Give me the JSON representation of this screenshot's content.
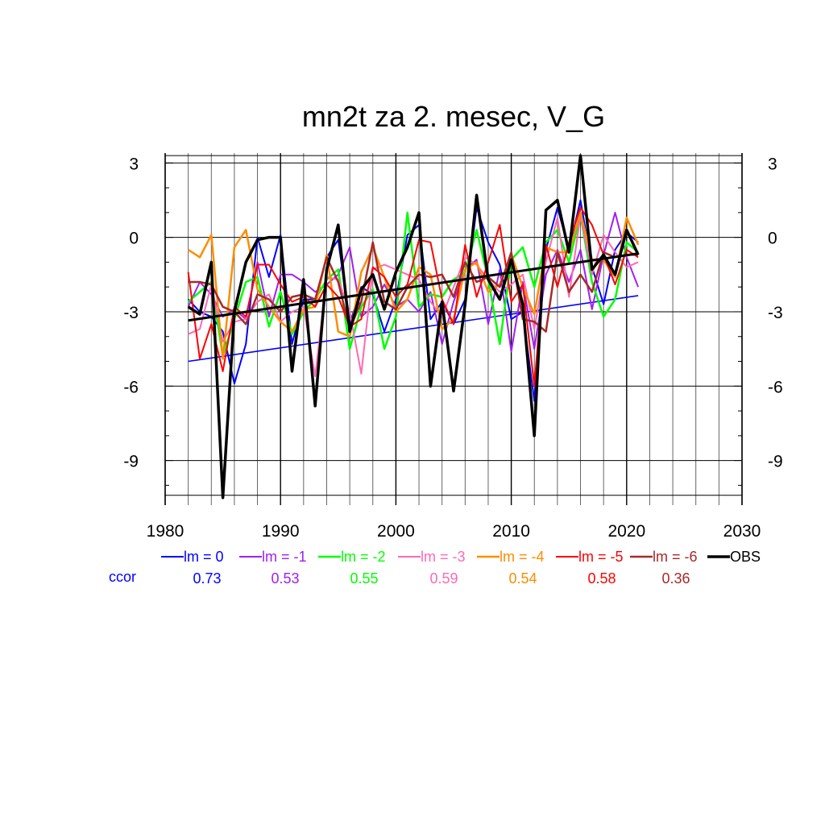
{
  "chart_data": {
    "type": "line",
    "title": "mn2t za 2. mesec, V_G",
    "xlabel": "",
    "ylabel": "",
    "xlim": [
      1980,
      2030
    ],
    "ylim": [
      -10.8,
      3.4
    ],
    "x_ticks": [
      1980,
      1990,
      2000,
      2010,
      2020,
      2030
    ],
    "y_ticks": [
      3,
      0,
      -3,
      -6,
      -9
    ],
    "y_tick_labels": [
      "3",
      "0",
      "-3",
      "-6",
      "-9"
    ],
    "grid": true,
    "legend_position": "bottom",
    "ccor_label": "ccor",
    "ccor_color": "#0000ff",
    "years": [
      1982,
      1983,
      1984,
      1985,
      1986,
      1987,
      1988,
      1989,
      1990,
      1991,
      1992,
      1993,
      1994,
      1995,
      1996,
      1997,
      1998,
      1999,
      2000,
      2001,
      2002,
      2003,
      2004,
      2005,
      2006,
      2007,
      2008,
      2009,
      2010,
      2011,
      2012,
      2013,
      2014,
      2015,
      2016,
      2017,
      2018,
      2019,
      2020,
      2021
    ],
    "series": [
      {
        "name": "lm = 0",
        "color": "#0000ff",
        "width": 2,
        "ccor": "0.73",
        "values": [
          -2.5,
          -3.0,
          -3.2,
          -3.8,
          -5.9,
          -4.3,
          0.0,
          -1.6,
          0.1,
          -4.3,
          -2.5,
          -2.5,
          -0.8,
          -0.1,
          -3.5,
          -2.0,
          -2.3,
          -3.8,
          -2.5,
          0.1,
          0.5,
          -3.3,
          -2.6,
          -3.5,
          -2.5,
          1.2,
          -0.2,
          -1.1,
          -3.3,
          -3.0,
          -6.6,
          -0.5,
          1.2,
          -0.5,
          1.5,
          -1.2,
          -2.7,
          -0.5,
          0.2,
          -0.2
        ],
        "trend": [
          -5.0,
          -2.35
        ]
      },
      {
        "name": "lm = -1",
        "color": "#a020f0",
        "width": 2,
        "ccor": "0.53",
        "values": [
          -2.8,
          -1.8,
          -2.3,
          -3.2,
          -2.9,
          -3.3,
          -1.0,
          -3.2,
          -1.5,
          -1.5,
          -1.8,
          -2.2,
          -1.9,
          -1.5,
          -0.4,
          -3.2,
          -2.8,
          -1.9,
          -2.8,
          -2.5,
          -3.0,
          -2.2,
          -4.3,
          -2.6,
          -1.3,
          -0.9,
          -3.5,
          -1.3,
          -4.6,
          -1.8,
          -4.5,
          -1.5,
          -0.5,
          -1.8,
          -0.5,
          -2.9,
          -0.7,
          1.0,
          -0.8,
          -2.0
        ],
        "trend": null
      },
      {
        "name": "lm = -2",
        "color": "#00ff00",
        "width": 2.5,
        "ccor": "0.55",
        "values": [
          -2.6,
          -2.2,
          -1.8,
          -4.8,
          -3.3,
          -1.8,
          -1.6,
          -3.6,
          -2.2,
          -3.9,
          -3.0,
          -2.5,
          -1.7,
          -1.3,
          -4.5,
          -2.8,
          -2.1,
          -4.5,
          -3.2,
          1.0,
          -2.8,
          -2.3,
          -2.4,
          -1.7,
          -1.4,
          0.3,
          -1.7,
          -4.3,
          -0.9,
          -0.4,
          -2.0,
          -0.2,
          0.3,
          -1.0,
          0.9,
          -1.8,
          -3.2,
          -2.5,
          -0.2,
          -0.6
        ],
        "trend": null
      },
      {
        "name": "lm = -3",
        "color": "#ff69b4",
        "width": 2,
        "ccor": "0.59",
        "values": [
          -3.9,
          -3.7,
          -1.9,
          -4.2,
          -3.4,
          -3.3,
          -2.6,
          -2.3,
          -3.4,
          -3.0,
          -2.8,
          -5.6,
          -1.6,
          -1.7,
          -3.0,
          -5.5,
          -1.3,
          -1.1,
          -1.3,
          -1.5,
          -1.7,
          -2.6,
          -3.2,
          -2.0,
          -0.8,
          -1.1,
          -1.7,
          -2.2,
          -1.9,
          -1.5,
          -3.7,
          -1.0,
          0.8,
          -2.4,
          0.9,
          -1.5,
          0.1,
          -0.6,
          -1.2,
          -1.0
        ],
        "trend": null
      },
      {
        "name": "lm = -4",
        "color": "#ff8c00",
        "width": 2.5,
        "ccor": "0.54",
        "values": [
          -0.5,
          -0.8,
          0.1,
          -4.9,
          -0.4,
          0.3,
          -2.1,
          -2.8,
          -3.4,
          -3.8,
          -2.9,
          -2.8,
          -0.7,
          -3.8,
          -4.0,
          -1.4,
          -0.4,
          -1.6,
          -3.0,
          -2.5,
          -1.2,
          -1.5,
          -3.7,
          -3.3,
          -1.3,
          -1.0,
          -2.2,
          -1.9,
          -0.7,
          -2.0,
          -3.1,
          -0.4,
          -0.6,
          -0.6,
          1.0,
          -0.9,
          -0.9,
          -1.6,
          0.8,
          -0.3
        ],
        "trend": null
      },
      {
        "name": "lm = -5",
        "color": "#ff0000",
        "width": 2,
        "ccor": "0.58",
        "values": [
          -1.4,
          -4.9,
          -3.5,
          -5.4,
          -2.8,
          -3.2,
          -1.1,
          -1.1,
          -1.9,
          -2.6,
          -2.4,
          -2.8,
          -1.9,
          -2.4,
          -3.6,
          -3.3,
          -1.2,
          -1.6,
          -2.4,
          -1.9,
          -0.1,
          -0.2,
          -2.5,
          -3.5,
          -0.3,
          -2.4,
          -1.0,
          0.5,
          -2.6,
          -1.9,
          -6.0,
          -0.3,
          -2.0,
          -0.2,
          1.2,
          0.5,
          -0.7,
          -1.9,
          -0.5,
          -0.8
        ],
        "trend": null
      },
      {
        "name": "lm = -6",
        "color": "#a52a2a",
        "width": 2.5,
        "ccor": "0.36",
        "values": [
          -1.8,
          -1.8,
          -1.9,
          -2.8,
          -3.0,
          -3.5,
          -2.3,
          -2.5,
          -3.0,
          -2.4,
          -2.3,
          -2.5,
          -0.8,
          -1.8,
          -3.7,
          -2.6,
          -0.2,
          -2.6,
          -2.9,
          -2.0,
          -1.5,
          -1.6,
          -1.5,
          -2.4,
          -1.0,
          -1.8,
          -1.6,
          -2.0,
          -0.6,
          -3.3,
          -3.4,
          -3.8,
          -0.6,
          -2.2,
          -1.5,
          -2.2,
          -0.6,
          -0.8,
          -0.7,
          -0.7
        ],
        "trend": null
      },
      {
        "name": "OBS",
        "color": "#000000",
        "width": 3.5,
        "ccor": "",
        "values": [
          -2.8,
          -3.1,
          -1.0,
          -10.5,
          -3.0,
          -1.0,
          -0.1,
          0.0,
          0.0,
          -5.4,
          -1.7,
          -6.8,
          -1.3,
          0.5,
          -3.8,
          -2.1,
          -1.5,
          -2.9,
          -1.4,
          -0.4,
          1.0,
          -6.0,
          -2.6,
          -6.2,
          -2.7,
          1.7,
          -1.7,
          -2.5,
          -0.9,
          -2.7,
          -8.0,
          1.1,
          1.5,
          -0.6,
          3.3,
          -1.3,
          -0.7,
          -1.5,
          0.3,
          -0.7
        ],
        "trend": [
          -3.35,
          -0.65
        ]
      }
    ]
  }
}
